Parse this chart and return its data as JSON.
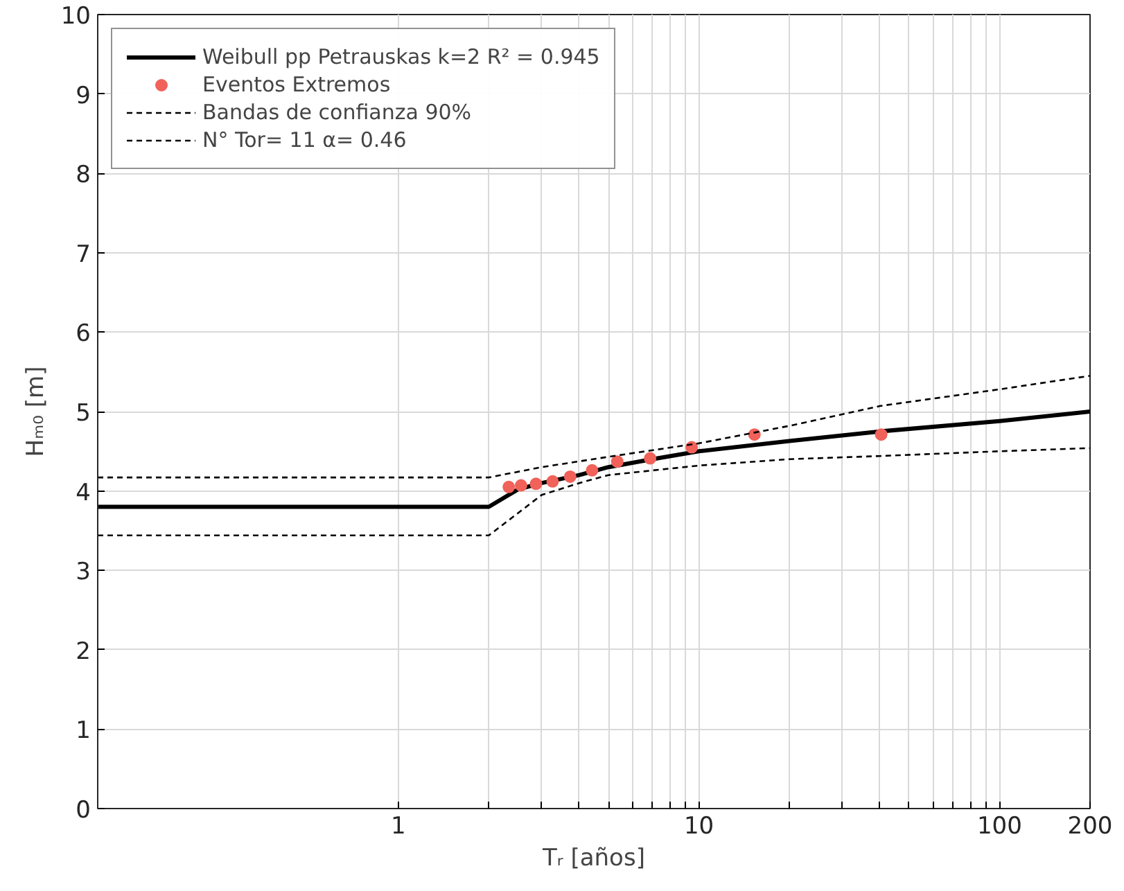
{
  "chart_data": {
    "type": "line",
    "xlabel": "Tᵣ [años]",
    "ylabel": "Hₘ₀ [m]",
    "log": "x",
    "xlim": [
      0.1,
      200
    ],
    "ylim": [
      0,
      10
    ],
    "xticks": [
      1,
      {
        "value": 2,
        "label": null
      },
      {
        "value": 3,
        "label": null
      },
      {
        "value": 4,
        "label": null
      },
      {
        "value": 5,
        "label": null
      },
      {
        "value": 6,
        "label": null
      },
      {
        "value": 7,
        "label": null
      },
      {
        "value": 8,
        "label": null
      },
      {
        "value": 9,
        "label": null
      },
      10,
      {
        "value": 20,
        "label": null
      },
      {
        "value": 30,
        "label": null
      },
      {
        "value": 40,
        "label": null
      },
      {
        "value": 50,
        "label": null
      },
      {
        "value": 60,
        "label": null
      },
      {
        "value": 70,
        "label": null
      },
      {
        "value": 80,
        "label": null
      },
      {
        "value": 90,
        "label": null
      },
      100,
      200
    ],
    "yticks": [
      0,
      1,
      2,
      3,
      4,
      5,
      6,
      7,
      8,
      9,
      10
    ],
    "grid": true,
    "legend": "top left",
    "series": [
      {
        "name": "Weibull pp Petrauskas k=2 R² = 0.945",
        "color": "#000000",
        "line_style": "solid",
        "marker": "none",
        "x": [
          0.1,
          2,
          2.5,
          3,
          4,
          5,
          7,
          10,
          20,
          40,
          100,
          200
        ],
        "values": [
          3.8,
          3.8,
          4.02,
          4.1,
          4.2,
          4.3,
          4.4,
          4.5,
          4.63,
          4.75,
          4.88,
          5.0
        ]
      },
      {
        "name": "Eventos Extremos",
        "type": "scatter",
        "color": "#f0625a",
        "marker": "circle",
        "x": [
          2.33,
          2.56,
          2.87,
          3.26,
          3.73,
          4.41,
          5.35,
          6.88,
          9.46,
          15.3,
          40.4
        ],
        "values": [
          4.05,
          4.07,
          4.09,
          4.12,
          4.18,
          4.26,
          4.37,
          4.41,
          4.55,
          4.71,
          4.71
        ]
      },
      {
        "name": "Bandas de confianza 90%",
        "color": "#000000",
        "line_style": "dashed",
        "marker": "none",
        "x": [
          0.1,
          2,
          3,
          5,
          10,
          20,
          40,
          100,
          200
        ],
        "values": [
          4.17,
          4.17,
          4.3,
          4.43,
          4.6,
          4.82,
          5.07,
          5.28,
          5.45
        ]
      },
      {
        "name": "N° Tor= 11 α= 0.46",
        "color": "#000000",
        "line_style": "dashed",
        "marker": "none",
        "x": [
          0.1,
          2,
          3,
          4,
          5,
          10,
          20,
          40,
          100,
          200
        ],
        "values": [
          3.44,
          3.44,
          3.95,
          4.1,
          4.2,
          4.32,
          4.4,
          4.44,
          4.5,
          4.54
        ]
      }
    ]
  }
}
